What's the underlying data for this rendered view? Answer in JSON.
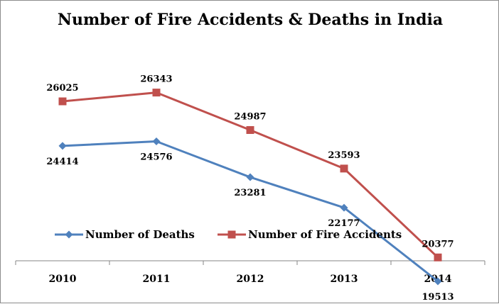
{
  "chart_data": {
    "type": "line",
    "title": "Number of Fire Accidents & Deaths in India",
    "xlabel": "",
    "ylabel": "",
    "categories": [
      "2010",
      "2011",
      "2012",
      "2013",
      "2014"
    ],
    "series": [
      {
        "name": "Number of Deaths",
        "values": [
          24414,
          24576,
          23281,
          22177,
          19513
        ],
        "color": "#4f81bd",
        "marker": "diamond",
        "label_position": "below"
      },
      {
        "name": "Number of Fire Accidents",
        "values": [
          26025,
          26343,
          24987,
          23593,
          20377
        ],
        "color": "#c0504d",
        "marker": "square",
        "label_position": "above"
      }
    ],
    "ylim": [
      16000,
      30000
    ],
    "grid": false,
    "legend_position": "bottom",
    "y_axis_visible": false
  }
}
